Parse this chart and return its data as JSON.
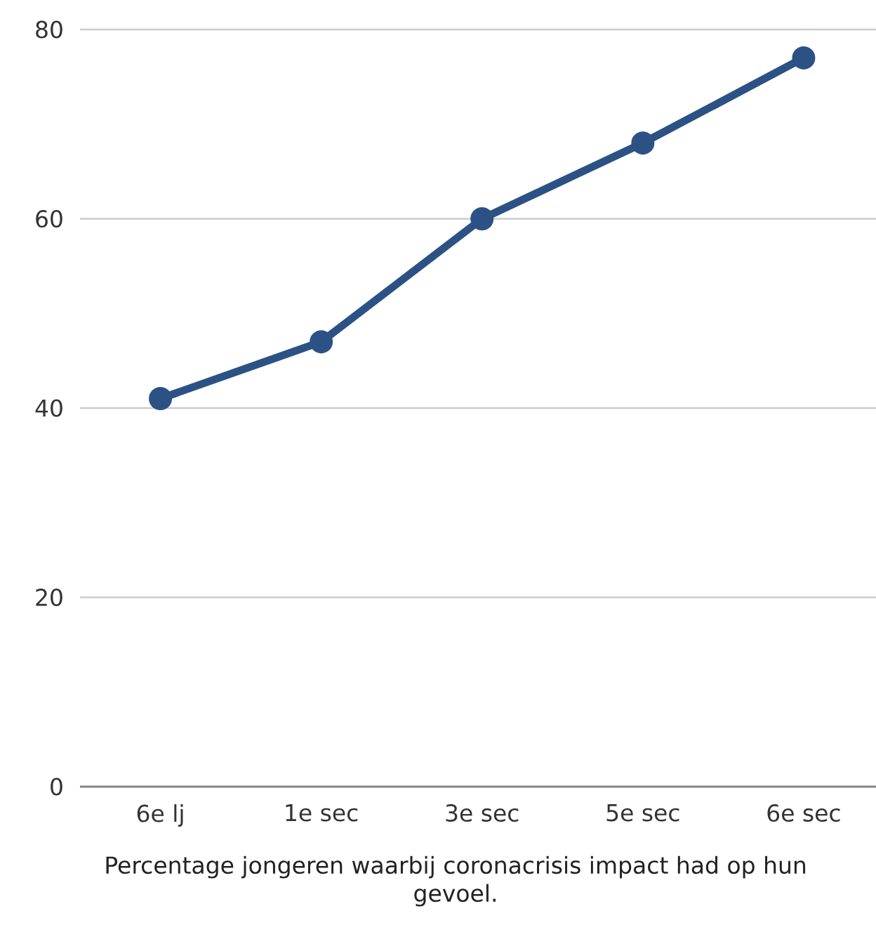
{
  "chart_data": {
    "type": "line",
    "xlabel": "Percentage jongeren waarbij coronacrisis impact had op hun gevoel.",
    "categories": [
      "6e lj",
      "1e sec",
      "3e sec",
      "5e sec",
      "6e sec"
    ],
    "series": [
      {
        "color": "#2c5285",
        "values": [
          41,
          47,
          60,
          68,
          77
        ]
      }
    ],
    "ylim": [
      0,
      80
    ],
    "yticks": [
      0,
      20,
      40,
      60,
      80
    ],
    "grid": "y",
    "marker": "circle",
    "line_style": "solid",
    "legend": false
  }
}
